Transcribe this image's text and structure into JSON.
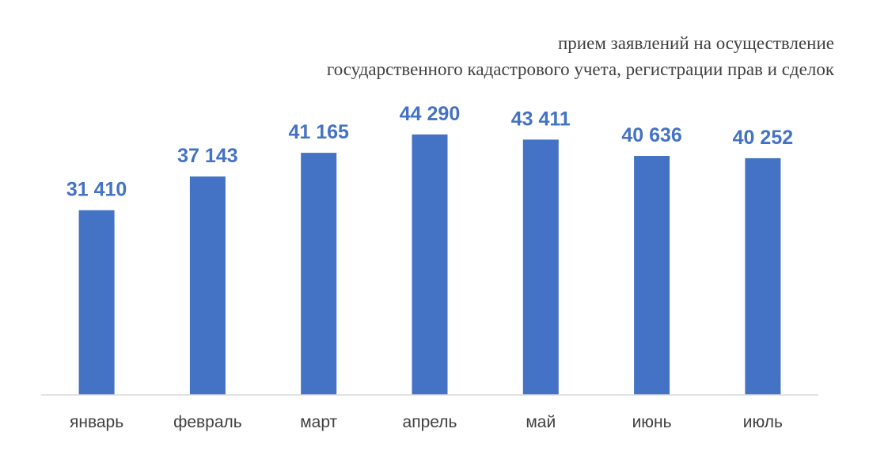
{
  "chart_data": {
    "type": "bar",
    "title_lines": [
      "прием заявлений на осуществление",
      "государственного кадастрового учета, регистрации прав и сделок"
    ],
    "categories": [
      "январь",
      "февраль",
      "март",
      "апрель",
      "май",
      "июнь",
      "июль"
    ],
    "values": [
      31410,
      37143,
      41165,
      44290,
      43411,
      40636,
      40252
    ],
    "value_labels": [
      "31 410",
      "37 143",
      "41 165",
      "44 290",
      "43 411",
      "40 636",
      "40 252"
    ],
    "ylim": [
      0,
      51000
    ],
    "grid": false,
    "legend": "none",
    "bar_color": "#4472C4",
    "label_color": "#4472C4"
  }
}
